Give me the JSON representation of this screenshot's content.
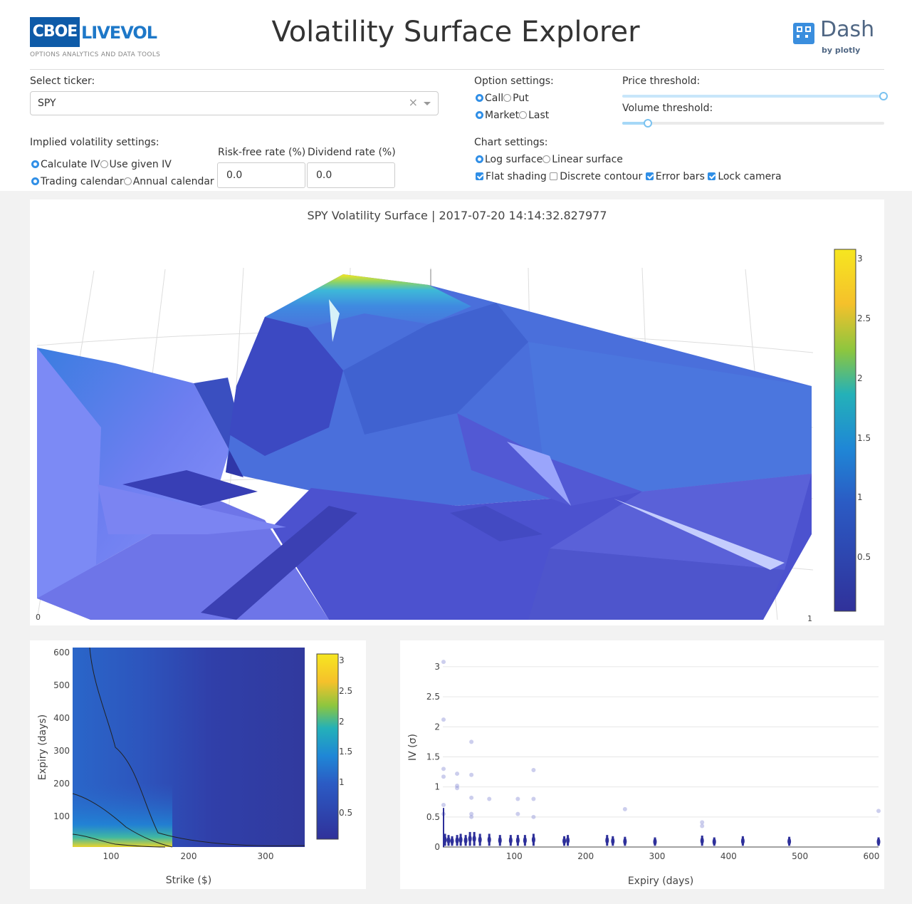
{
  "header": {
    "logo_left": {
      "main": "CBOE",
      "live": "LIVEVOL",
      "tagline": "OPTIONS ANALYTICS AND DATA TOOLS"
    },
    "title": "Volatility Surface Explorer",
    "logo_right": {
      "word": "Dash",
      "by": "by plotly"
    }
  },
  "controls": {
    "ticker": {
      "label": "Select ticker:",
      "value": "SPY"
    },
    "option_settings": {
      "label": "Option settings:",
      "call": "Call",
      "put": "Put",
      "market": "Market",
      "last": "Last",
      "selected_type": "Call",
      "selected_price": "Market"
    },
    "price_threshold": {
      "label": "Price threshold:",
      "level": 1.0
    },
    "volume_threshold": {
      "label": "Volume threshold:",
      "level": 0.1
    },
    "iv_settings": {
      "label": "Implied volatility settings:",
      "calculate": "Calculate IV",
      "given": "Use given IV",
      "trading": "Trading calendar",
      "annual": "Annual calendar"
    },
    "risk_free": {
      "label": "Risk-free rate (%)",
      "value": "0.0"
    },
    "dividend": {
      "label": "Dividend rate (%)",
      "value": "0.0"
    },
    "chart_settings": {
      "label": "Chart settings:",
      "log": "Log surface",
      "linear": "Linear surface",
      "flat": "Flat shading",
      "discrete": "Discrete contour",
      "error_bars": "Error bars",
      "lock_camera": "Lock camera"
    }
  },
  "colors": {
    "accent": "#2f8ee6",
    "viridis_low": "#30319a",
    "viridis_high": "#f6e620"
  },
  "chart_data": [
    {
      "type": "surface",
      "title": "SPY Volatility Surface  |  2017-07-20 14:14:32.827977",
      "colorbar_ticks": [
        "3",
        "2.5",
        "2",
        "1.5",
        "1",
        "0.5"
      ],
      "zrange": [
        0,
        3.1
      ],
      "axis_labels": [
        "0",
        "1"
      ]
    },
    {
      "type": "heatmap",
      "xlabel": "Strike ($)",
      "ylabel": "Expiry (days)",
      "xticks": [
        100,
        200,
        300
      ],
      "yticks": [
        100,
        200,
        300,
        400,
        500,
        600
      ],
      "xlim": [
        50,
        350
      ],
      "ylim": [
        0,
        615
      ],
      "colorbar_ticks": [
        "3",
        "2.5",
        "2",
        "1.5",
        "1",
        "0.5"
      ]
    },
    {
      "type": "scatter",
      "xlabel": "Expiry (days)",
      "ylabel": "IV (σ)",
      "xticks": [
        100,
        200,
        300,
        400,
        500,
        600
      ],
      "yticks": [
        "0",
        "0.5",
        "1",
        "1.5",
        "2",
        "2.5",
        "3"
      ],
      "xlim": [
        0,
        610
      ],
      "ylim": [
        0,
        3.2
      ],
      "outliers": [
        [
          1,
          3.08
        ],
        [
          1,
          2.12
        ],
        [
          1,
          1.3
        ],
        [
          1,
          1.17
        ],
        [
          1,
          0.7
        ],
        [
          1,
          0.55
        ],
        [
          20,
          1.22
        ],
        [
          20,
          0.98
        ],
        [
          20,
          1.02
        ],
        [
          40,
          1.75
        ],
        [
          40,
          1.2
        ],
        [
          40,
          0.82
        ],
        [
          40,
          0.55
        ],
        [
          40,
          0.5
        ],
        [
          65,
          0.8
        ],
        [
          105,
          0.8
        ],
        [
          105,
          0.55
        ],
        [
          127,
          1.28
        ],
        [
          127,
          0.8
        ],
        [
          127,
          0.5
        ],
        [
          255,
          0.63
        ],
        [
          363,
          0.41
        ],
        [
          363,
          0.35
        ],
        [
          610,
          0.6
        ]
      ],
      "clusters": [
        [
          3,
          0.22
        ],
        [
          8,
          0.2
        ],
        [
          13,
          0.18
        ],
        [
          20,
          0.2
        ],
        [
          25,
          0.22
        ],
        [
          32,
          0.2
        ],
        [
          38,
          0.25
        ],
        [
          44,
          0.25
        ],
        [
          52,
          0.22
        ],
        [
          65,
          0.22
        ],
        [
          80,
          0.2
        ],
        [
          95,
          0.2
        ],
        [
          105,
          0.2
        ],
        [
          115,
          0.2
        ],
        [
          127,
          0.22
        ],
        [
          170,
          0.18
        ],
        [
          175,
          0.2
        ],
        [
          230,
          0.2
        ],
        [
          238,
          0.18
        ],
        [
          255,
          0.17
        ],
        [
          297,
          0.16
        ],
        [
          363,
          0.19
        ],
        [
          380,
          0.16
        ],
        [
          420,
          0.18
        ],
        [
          485,
          0.17
        ],
        [
          610,
          0.16
        ]
      ]
    }
  ]
}
